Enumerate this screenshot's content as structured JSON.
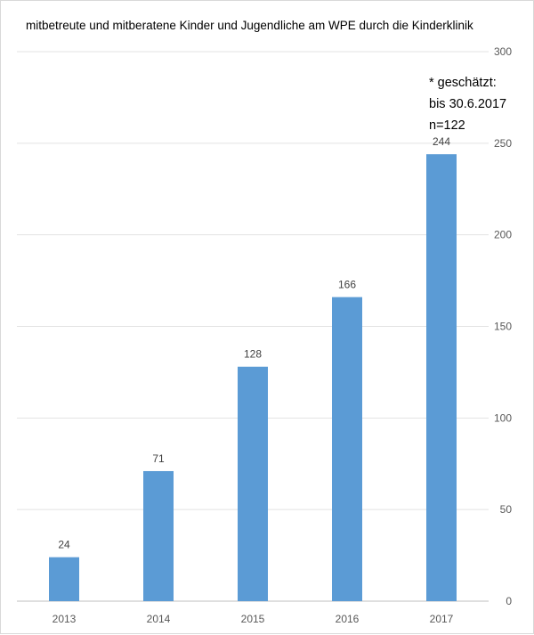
{
  "chart_data": {
    "type": "bar",
    "title": "mitbetreute und mitberatene Kinder und Jugendliche am WPE durch die Kinderklinik",
    "categories": [
      "2013",
      "2014",
      "2015",
      "2016",
      "2017"
    ],
    "values": [
      24,
      71,
      128,
      166,
      244
    ],
    "data_labels": [
      "24",
      "71",
      "128",
      "166",
      "244"
    ],
    "y_ticks": [
      "0",
      "50",
      "100",
      "150",
      "200",
      "250",
      "300"
    ],
    "ylim": [
      0,
      300
    ],
    "y_axis_side": "right",
    "grid": true,
    "bar_color": "#5b9bd5",
    "annotation": [
      "* geschätzt:",
      "bis 30.6.2017",
      "n=122"
    ]
  }
}
